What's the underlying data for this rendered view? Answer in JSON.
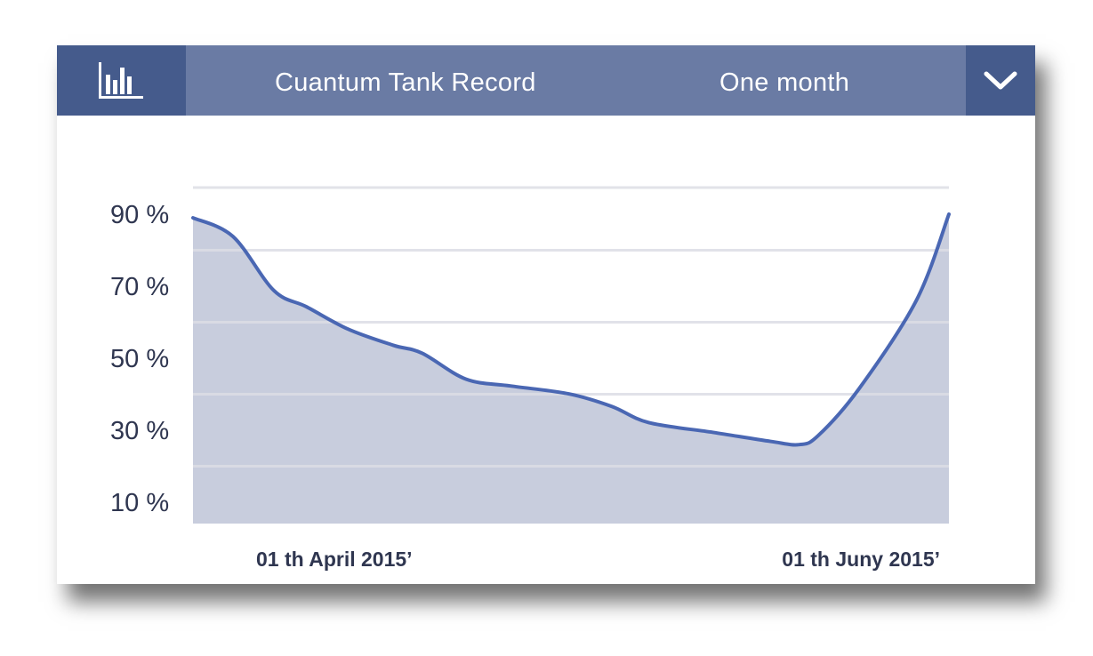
{
  "header": {
    "title": "Cuantum Tank Record",
    "period": "One month"
  },
  "icons": {
    "chart": "bar-chart-icon",
    "dropdown": "chevron-down-icon"
  },
  "colors": {
    "header_bg": "#6a7ba4",
    "header_dark": "#455b8c",
    "line": "#4a67b3",
    "area_fill": "#c8cddd",
    "gridline": "#e2e3e8",
    "text": "#2f3650"
  },
  "chart_data": {
    "type": "area",
    "title": "",
    "xlabel": "",
    "ylabel": "",
    "ylim": [
      0,
      100
    ],
    "grid": true,
    "yticks": [
      {
        "value": 90,
        "label": "90 %"
      },
      {
        "value": 70,
        "label": "70 %"
      },
      {
        "value": 50,
        "label": "50 %"
      },
      {
        "value": 30,
        "label": "30 %"
      },
      {
        "value": 10,
        "label": "10 %"
      }
    ],
    "xticks": [
      {
        "label": "01 th April 2015’"
      },
      {
        "label": "01 th Juny 2015’"
      }
    ],
    "series": [
      {
        "values": [
          {
            "t": 0.0,
            "y": 89.0
          },
          {
            "t": 0.053,
            "y": 83.8
          },
          {
            "t": 0.107,
            "y": 68.8
          },
          {
            "t": 0.15,
            "y": 64.3
          },
          {
            "t": 0.205,
            "y": 58.1
          },
          {
            "t": 0.265,
            "y": 53.6
          },
          {
            "t": 0.303,
            "y": 51.4
          },
          {
            "t": 0.361,
            "y": 44.2
          },
          {
            "t": 0.42,
            "y": 42.3
          },
          {
            "t": 0.497,
            "y": 40.1
          },
          {
            "t": 0.554,
            "y": 36.6
          },
          {
            "t": 0.603,
            "y": 32.1
          },
          {
            "t": 0.688,
            "y": 29.4
          },
          {
            "t": 0.764,
            "y": 26.9
          },
          {
            "t": 0.802,
            "y": 26.0
          },
          {
            "t": 0.827,
            "y": 28.5
          },
          {
            "t": 0.881,
            "y": 41.5
          },
          {
            "t": 0.957,
            "y": 66.1
          },
          {
            "t": 1.0,
            "y": 90.0
          }
        ]
      }
    ]
  }
}
